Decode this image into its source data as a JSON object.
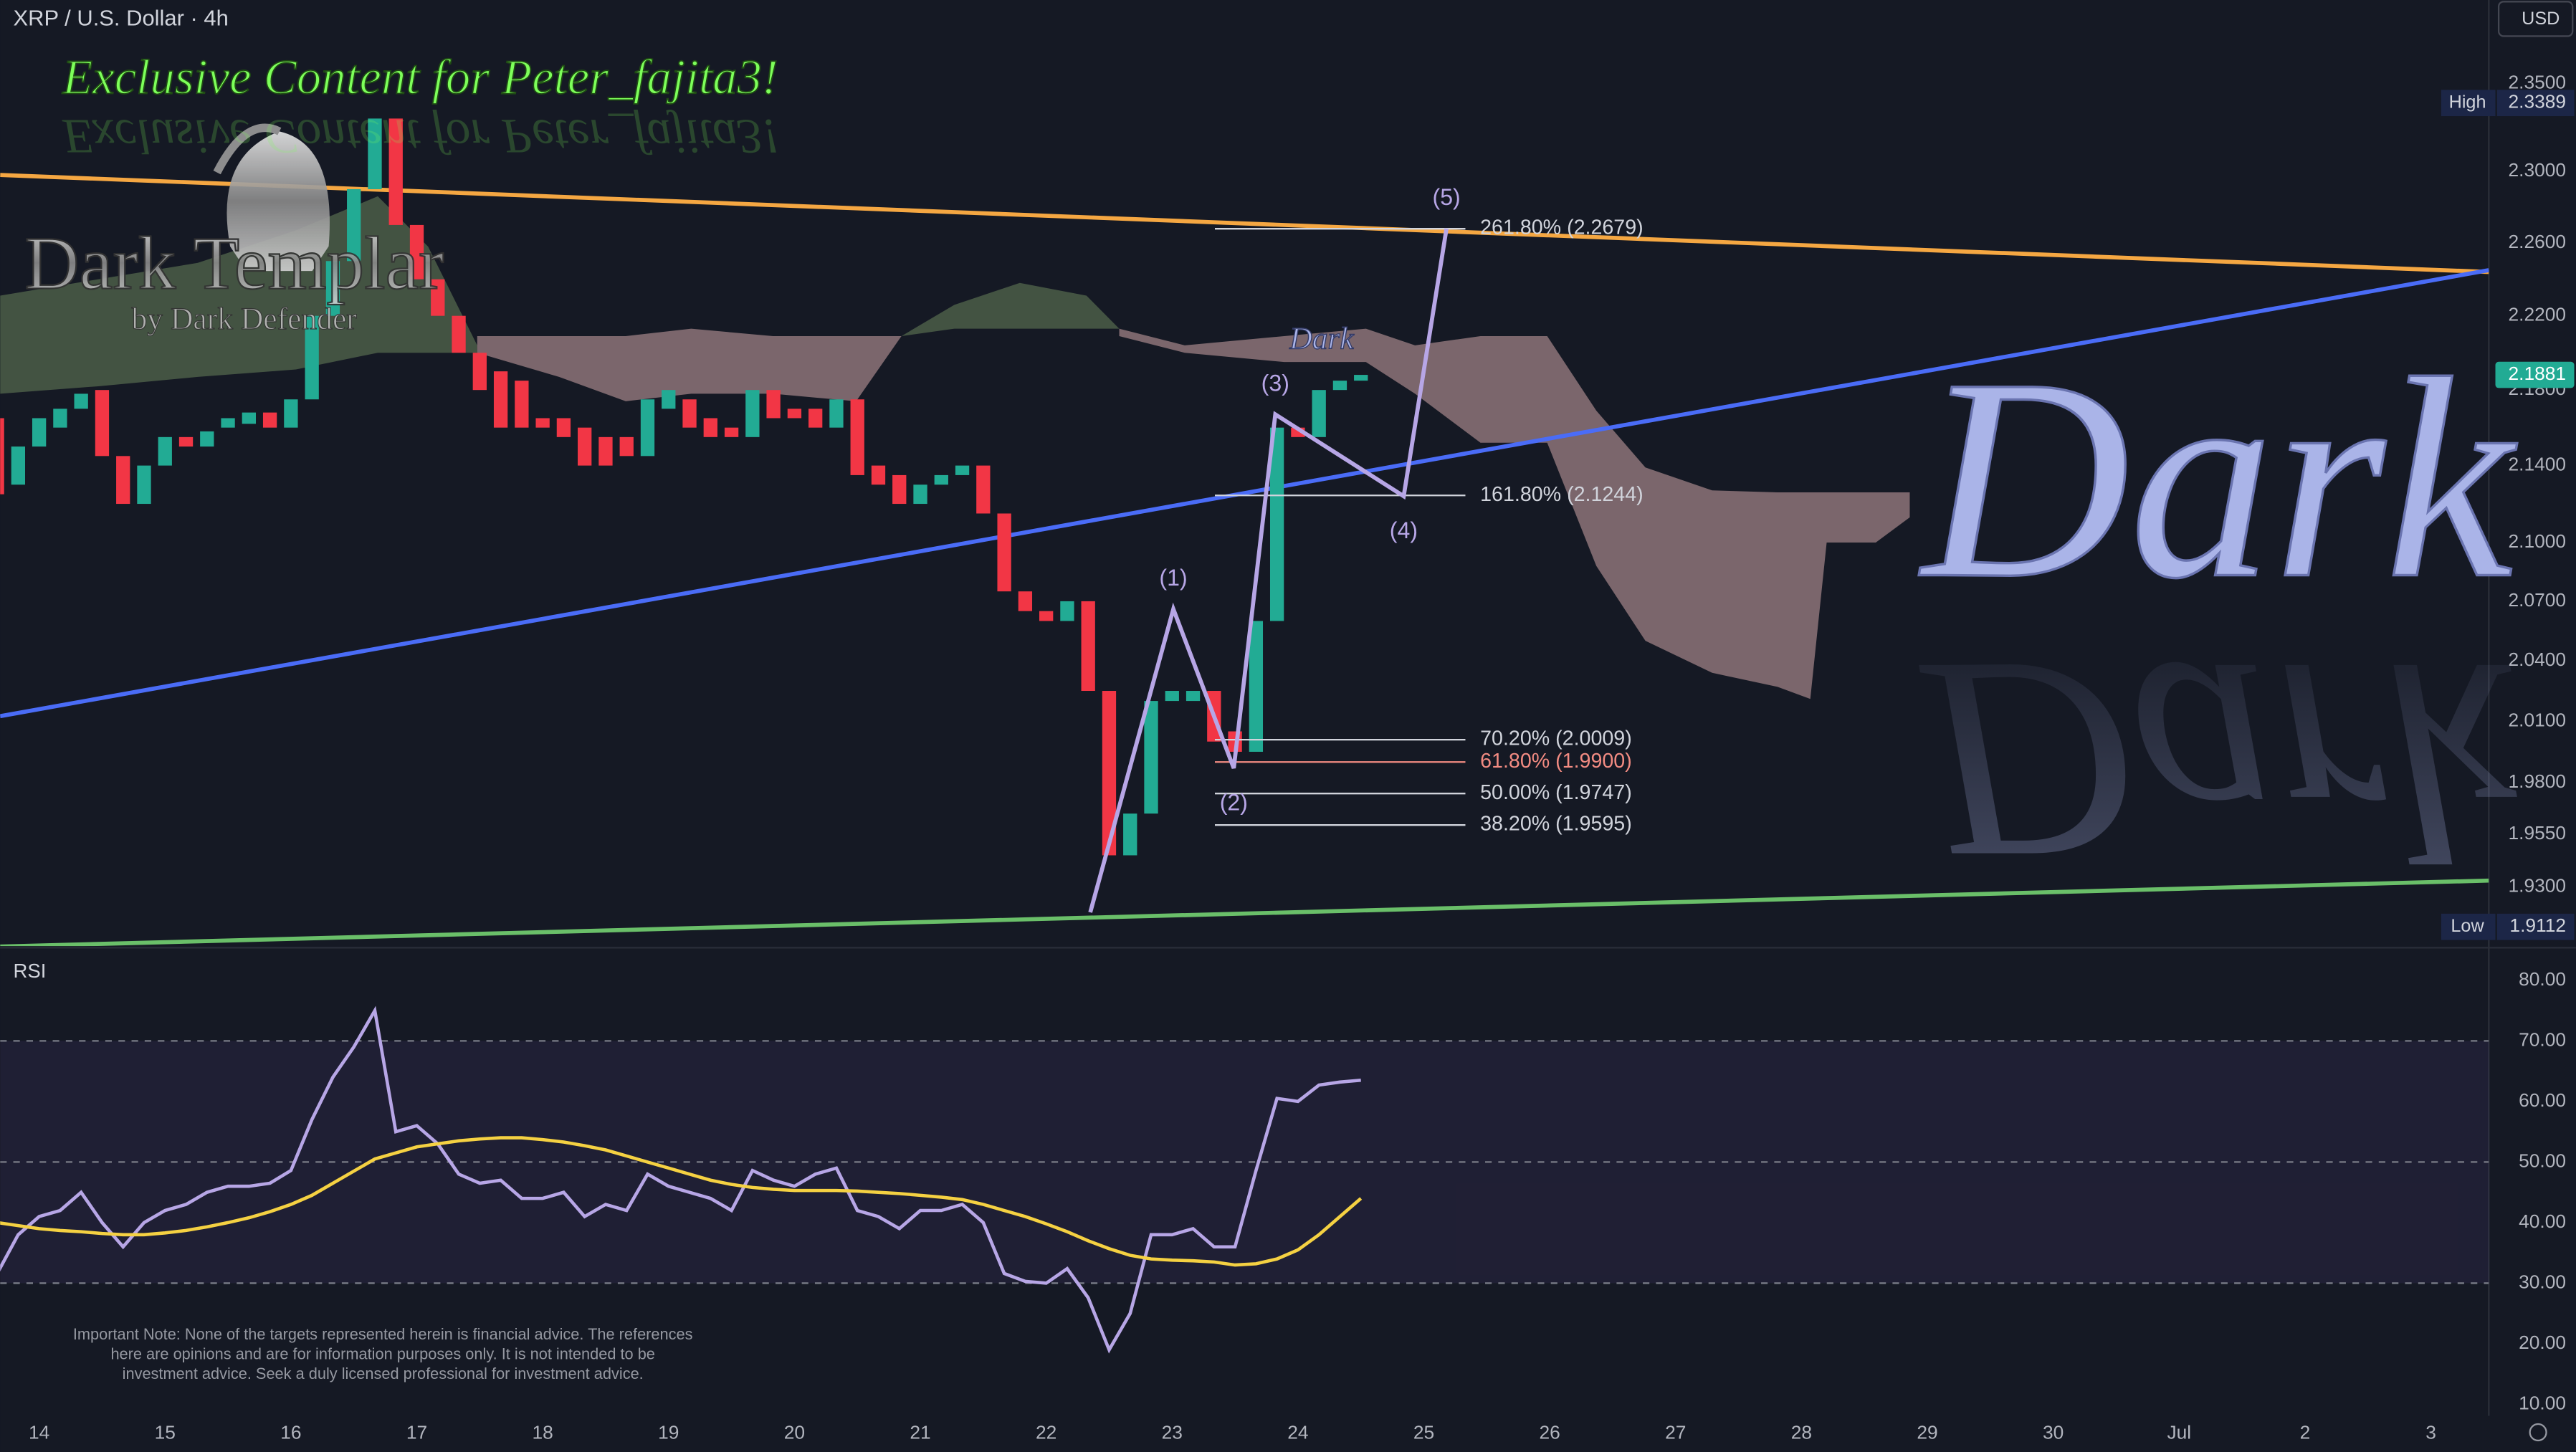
{
  "currency": "USD",
  "overlay": {
    "headline": "Exclusive Content for Peter_fajita3!",
    "logo_title": "Dark Templar",
    "logo_subtitle": "by Dark Defender",
    "watermark": "Dark",
    "disclaimer": [
      "Important Note: None of the targets represented herein is financial advice. The references",
      "here are opinions and are for information purposes only. It is not intended to be",
      "investment advice. Seek a duly licensed professional for investment advice."
    ]
  },
  "chart_data": [
    {
      "type": "candlestick",
      "title": "XRP / U.S. Dollar · 4h",
      "log_scale": true,
      "up_color": "#22ab94",
      "down_color": "#f23645",
      "xlim": [
        13.69,
        33.46
      ],
      "xticks": [
        14,
        15,
        16,
        17,
        18,
        19,
        20,
        21,
        22,
        23,
        24,
        25,
        26,
        27,
        28,
        29,
        30,
        {
          "value": 31,
          "label": "Jul"
        },
        {
          "value": 32,
          "label": "2"
        },
        {
          "value": 33,
          "label": "3"
        }
      ],
      "ylim": [
        1.9022,
        2.3987
      ],
      "yticks": [
        {
          "value": 2.35,
          "label": "2.3500"
        },
        {
          "value": 2.3,
          "label": "2.3000"
        },
        {
          "value": 2.26,
          "label": "2.2600"
        },
        {
          "value": 2.22,
          "label": "2.2200"
        },
        {
          "value": 2.18,
          "label": "2.1800"
        },
        {
          "value": 2.14,
          "label": "2.1400"
        },
        {
          "value": 2.1,
          "label": "2.1000"
        },
        {
          "value": 2.07,
          "label": "2.0700"
        },
        {
          "value": 2.04,
          "label": "2.0400"
        },
        {
          "value": 2.01,
          "label": "2.0100"
        },
        {
          "value": 1.98,
          "label": "1.9800"
        },
        {
          "value": 1.955,
          "label": "1.9550"
        },
        {
          "value": 1.93,
          "label": "1.9300"
        }
      ],
      "x": [
        13.6667,
        13.8333,
        14,
        14.1667,
        14.3333,
        14.5,
        14.6667,
        14.8333,
        15,
        15.1667,
        15.3333,
        15.5,
        15.6667,
        15.8333,
        16,
        16.1667,
        16.3333,
        16.5,
        16.6667,
        16.8333,
        17,
        17.1667,
        17.3333,
        17.5,
        17.6667,
        17.8333,
        18,
        18.1667,
        18.3333,
        18.5,
        18.6667,
        18.8333,
        19,
        19.1667,
        19.3333,
        19.5,
        19.6667,
        19.8333,
        20,
        20.1667,
        20.3333,
        20.5,
        20.6667,
        20.8333,
        21,
        21.1667,
        21.3333,
        21.5,
        21.6667,
        21.8333,
        22,
        22.1667,
        22.3333,
        22.5,
        22.6667,
        22.8333,
        23,
        23.1667,
        23.3333,
        23.5,
        23.6667,
        23.8333,
        24,
        24.1667,
        24.3333,
        24.5
      ],
      "open": [
        2.165,
        2.13,
        2.15,
        2.16,
        2.17,
        2.18,
        2.145,
        2.12,
        2.14,
        2.155,
        2.15,
        2.16,
        2.162,
        2.168,
        2.16,
        2.175,
        2.22,
        2.25,
        2.29,
        2.33,
        2.27,
        2.24,
        2.22,
        2.2,
        2.19,
        2.185,
        2.165,
        2.165,
        2.16,
        2.155,
        2.155,
        2.145,
        2.17,
        2.175,
        2.165,
        2.16,
        2.155,
        2.18,
        2.17,
        2.17,
        2.16,
        2.175,
        2.14,
        2.135,
        2.12,
        2.13,
        2.135,
        2.14,
        2.115,
        2.075,
        2.065,
        2.06,
        2.07,
        2.025,
        1.945,
        1.965,
        2.02,
        2.02,
        2.025,
        2.005,
        1.995,
        2.06,
        2.16,
        2.155,
        2.18,
        2.185
      ],
      "high": {
        "label": "High",
        "value": 2.3389
      },
      "low": {
        "label": "Low",
        "value": 1.9112
      },
      "close": [
        2.125,
        2.15,
        2.165,
        2.17,
        2.178,
        2.145,
        2.12,
        2.14,
        2.155,
        2.15,
        2.158,
        2.165,
        2.168,
        2.16,
        2.175,
        2.22,
        2.25,
        2.29,
        2.33,
        2.27,
        2.24,
        2.22,
        2.2,
        2.18,
        2.16,
        2.16,
        2.16,
        2.155,
        2.14,
        2.14,
        2.145,
        2.175,
        2.18,
        2.16,
        2.155,
        2.155,
        2.18,
        2.165,
        2.165,
        2.16,
        2.175,
        2.135,
        2.13,
        2.12,
        2.13,
        2.135,
        2.14,
        2.115,
        2.075,
        2.065,
        2.06,
        2.07,
        2.025,
        1.945,
        1.965,
        2.02,
        2.025,
        2.025,
        2.0,
        1.995,
        2.06,
        2.16,
        2.155,
        2.18,
        2.185,
        2.1881
      ],
      "clouds": [
        {
          "color": "#4b5e48",
          "x": [
            13.69,
            14.47,
            15.26,
            16.04,
            16.69,
            17.09,
            17.48
          ],
          "upper": [
            2.231,
            2.24,
            2.249,
            2.267,
            2.286,
            2.258,
            2.204
          ],
          "lower": [
            2.178,
            2.182,
            2.187,
            2.191,
            2.2,
            2.2,
            2.2
          ]
        },
        {
          "color": "#8d7479",
          "x": [
            17.48,
            18.13,
            18.66,
            19.18,
            19.83,
            20.49,
            20.85
          ],
          "upper": [
            2.209,
            2.209,
            2.209,
            2.213,
            2.209,
            2.209,
            2.209
          ],
          "lower": [
            2.2,
            2.187,
            2.174,
            2.178,
            2.178,
            2.174,
            2.209
          ]
        },
        {
          "color": "#4b5e48",
          "x": [
            20.85,
            21.27,
            21.79,
            22.32,
            22.58
          ],
          "upper": [
            2.209,
            2.226,
            2.238,
            2.231,
            2.213
          ],
          "lower": [
            2.209,
            2.213,
            2.213,
            2.213,
            2.213
          ]
        },
        {
          "color": "#8d7479",
          "x": [
            22.58,
            23.1,
            23.89,
            24.54,
            24.93,
            25.45,
            25.98,
            26.37,
            26.76,
            27.29,
            27.81,
            28.07,
            28.2,
            28.59,
            28.86
          ],
          "upper": [
            2.213,
            2.204,
            2.209,
            2.213,
            2.204,
            2.209,
            2.209,
            2.169,
            2.139,
            2.127,
            2.126,
            2.126,
            2.126,
            2.126,
            2.126
          ],
          "lower": [
            2.209,
            2.2,
            2.195,
            2.195,
            2.178,
            2.152,
            2.152,
            2.088,
            2.05,
            2.034,
            2.027,
            2.021,
            2.1,
            2.1,
            2.113
          ]
        }
      ],
      "trendlines": [
        {
          "color": "#f5a742",
          "x": [
            13.69,
            33.46
          ],
          "values": [
            2.298,
            2.244
          ]
        },
        {
          "color": "#4a6cf7",
          "x": [
            13.69,
            33.46
          ],
          "values": [
            2.0125,
            2.245
          ]
        },
        {
          "color": "#6abf69",
          "x": [
            13.69,
            33.46
          ],
          "values": [
            1.902,
            1.933
          ]
        }
      ],
      "fib": {
        "x": [
          23.34,
          25.33
        ],
        "levels": [
          {
            "label": "261.80% (2.2679)",
            "value": 2.2679,
            "color": "#d1d4dc"
          },
          {
            "label": "161.80% (2.1244)",
            "value": 2.1244,
            "color": "#d1d4dc"
          },
          {
            "label": "70.20% (2.0009)",
            "value": 2.0009,
            "color": "#d1d4dc"
          },
          {
            "label": "61.80% (1.9900)",
            "value": 1.99,
            "color": "#f28b82"
          },
          {
            "label": "50.00% (1.9747)",
            "value": 1.9747,
            "color": "#d1d4dc"
          },
          {
            "label": "38.20% (1.9595)",
            "value": 1.9595,
            "color": "#d1d4dc"
          }
        ]
      },
      "wave": {
        "color": "#b7a6e6",
        "labels": [
          "(1)",
          "(2)",
          "(3)",
          "(4)",
          "(5)"
        ],
        "x": [
          22.35,
          23.01,
          23.49,
          23.82,
          24.84,
          25.18
        ],
        "values": [
          1.918,
          2.066,
          1.987,
          2.167,
          2.124,
          2.268
        ]
      },
      "last": 2.1881
    },
    {
      "type": "line",
      "title": "RSI",
      "ylim": [
        8.1,
        85.1
      ],
      "yticks": [
        {
          "value": 80,
          "label": "80.00"
        },
        {
          "value": 70,
          "label": "70.00"
        },
        {
          "value": 60,
          "label": "60.00"
        },
        {
          "value": 50,
          "label": "50.00"
        },
        {
          "value": 40,
          "label": "40.00"
        },
        {
          "value": 30,
          "label": "30.00"
        },
        {
          "value": 20,
          "label": "20.00"
        },
        {
          "value": 10,
          "label": "10.00"
        }
      ],
      "levels": [
        70,
        50,
        30
      ],
      "series": [
        {
          "color": "#b7a6e6",
          "values": [
            31.6,
            38,
            41,
            42,
            45,
            40,
            36,
            40,
            42,
            43,
            45,
            46,
            46,
            46.5,
            48.6,
            57,
            64,
            69,
            75,
            55,
            56,
            53,
            48,
            46.5,
            47,
            44,
            44,
            45,
            41,
            43,
            42,
            48,
            46,
            45,
            44,
            42,
            48.6,
            47,
            46,
            48,
            49,
            42,
            41,
            39,
            42,
            42,
            43,
            40,
            31.6,
            30.3,
            30,
            32.4,
            27.6,
            19,
            25,
            38,
            38,
            39,
            36,
            36,
            48.6,
            60.5,
            60,
            62.7,
            63.2,
            63.5
          ]
        },
        {
          "color": "#f5d142",
          "values": [
            40,
            39.5,
            39,
            38.7,
            38.5,
            38.2,
            38,
            38,
            38.3,
            38.7,
            39.3,
            40,
            40.8,
            41.8,
            43,
            44.5,
            46.5,
            48.5,
            50.5,
            51.5,
            52.5,
            53,
            53.5,
            53.8,
            54,
            54,
            53.7,
            53.3,
            52.7,
            52,
            51,
            50,
            49,
            48,
            47,
            46.3,
            45.8,
            45.5,
            45.3,
            45.3,
            45.3,
            45.2,
            45,
            44.8,
            44.5,
            44.2,
            43.8,
            43,
            42,
            41,
            39.8,
            38.5,
            37,
            35.7,
            34.6,
            34,
            33.8,
            33.7,
            33.5,
            33,
            33.2,
            34,
            35.5,
            38,
            41,
            44
          ]
        }
      ]
    }
  ]
}
